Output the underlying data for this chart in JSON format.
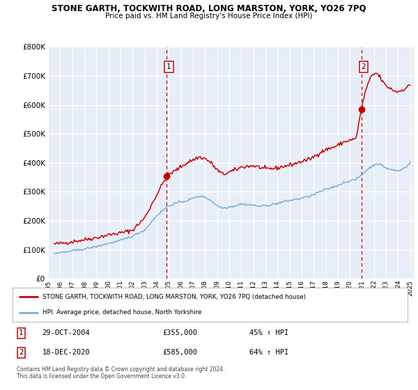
{
  "title": "STONE GARTH, TOCKWITH ROAD, LONG MARSTON, YORK, YO26 7PQ",
  "subtitle": "Price paid vs. HM Land Registry's House Price Index (HPI)",
  "legend_line1": "STONE GARTH, TOCKWITH ROAD, LONG MARSTON, YORK, YO26 7PQ (detached house)",
  "legend_line2": "HPI: Average price, detached house, North Yorkshire",
  "footnote1": "Contains HM Land Registry data © Crown copyright and database right 2024.",
  "footnote2": "This data is licensed under the Open Government Licence v3.0.",
  "sale1_date": "29-OCT-2004",
  "sale1_price": "£355,000",
  "sale1_hpi": "45% ↑ HPI",
  "sale1_x": 2004.83,
  "sale1_y": 355000,
  "sale2_date": "18-DEC-2020",
  "sale2_price": "£585,000",
  "sale2_hpi": "64% ↑ HPI",
  "sale2_x": 2020.96,
  "sale2_y": 585000,
  "vline1_x": 2004.83,
  "vline2_x": 2020.96,
  "xlim": [
    1995,
    2025.3
  ],
  "ylim": [
    0,
    800000
  ],
  "yticks": [
    0,
    100000,
    200000,
    300000,
    400000,
    500000,
    600000,
    700000,
    800000
  ],
  "red_line_color": "#cc0000",
  "blue_line_color": "#7aaddd",
  "bg_color": "#e8eef8",
  "grid_color": "#ffffff",
  "key_times_red": [
    1995.5,
    1996,
    1997,
    1998,
    1999,
    2000,
    2001,
    2002,
    2003,
    2004.0,
    2004.83,
    2005.5,
    2006.5,
    2007.5,
    2008.0,
    2008.5,
    2009.0,
    2009.5,
    2010,
    2010.5,
    2011,
    2011.5,
    2012,
    2012.5,
    2013,
    2013.5,
    2014,
    2014.5,
    2015,
    2015.5,
    2016,
    2016.5,
    2017,
    2017.5,
    2018,
    2018.5,
    2019,
    2019.5,
    2020.0,
    2020.5,
    2020.96,
    2021.3,
    2021.8,
    2022.2,
    2022.5,
    2022.8,
    2023.0,
    2023.3,
    2023.6,
    2023.9,
    2024.2,
    2024.5,
    2024.8,
    2025.0
  ],
  "key_vals_red": [
    120000,
    122000,
    128000,
    135000,
    142000,
    152000,
    158000,
    168000,
    210000,
    290000,
    355000,
    372000,
    400000,
    420000,
    415000,
    400000,
    375000,
    360000,
    368000,
    375000,
    385000,
    388000,
    390000,
    385000,
    378000,
    380000,
    382000,
    388000,
    392000,
    398000,
    405000,
    410000,
    420000,
    435000,
    445000,
    452000,
    460000,
    472000,
    478000,
    482000,
    585000,
    650000,
    700000,
    710000,
    695000,
    675000,
    665000,
    658000,
    650000,
    645000,
    648000,
    655000,
    662000,
    668000
  ],
  "key_times_blue": [
    1995.5,
    1996,
    1997,
    1998,
    1999,
    2000,
    2001,
    2002,
    2003,
    2004.0,
    2004.83,
    2005.5,
    2006.5,
    2007.5,
    2008.0,
    2008.5,
    2009.0,
    2009.5,
    2010,
    2010.5,
    2011,
    2011.5,
    2012,
    2012.5,
    2013,
    2013.5,
    2014,
    2014.5,
    2015,
    2015.5,
    2016,
    2016.5,
    2017,
    2017.5,
    2018,
    2018.5,
    2019,
    2019.5,
    2020.0,
    2020.5,
    2020.96,
    2021.3,
    2021.8,
    2022.2,
    2022.5,
    2022.8,
    2023.0,
    2023.3,
    2023.6,
    2023.9,
    2024.2,
    2024.5,
    2024.8,
    2025.0
  ],
  "key_vals_blue": [
    88000,
    90000,
    96000,
    103000,
    111000,
    122000,
    132000,
    148000,
    168000,
    218000,
    248000,
    260000,
    270000,
    285000,
    282000,
    270000,
    252000,
    244000,
    248000,
    252000,
    258000,
    256000,
    254000,
    250000,
    252000,
    256000,
    260000,
    266000,
    270000,
    274000,
    278000,
    283000,
    290000,
    300000,
    308000,
    315000,
    322000,
    332000,
    338000,
    342000,
    358000,
    372000,
    388000,
    398000,
    394000,
    388000,
    382000,
    378000,
    375000,
    372000,
    375000,
    382000,
    392000,
    400000
  ]
}
